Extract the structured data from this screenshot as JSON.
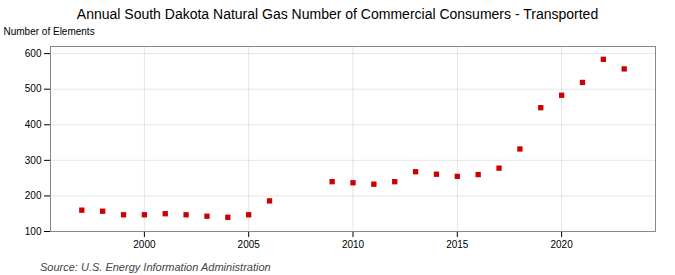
{
  "chart_data": {
    "type": "scatter",
    "title": "Annual South Dakota Natural Gas Number of Commercial Consumers - Transported",
    "y_label": "Number of Elements",
    "source": "Source: U.S. Energy Information Administration",
    "x": [
      1997,
      1998,
      1999,
      2000,
      2001,
      2002,
      2003,
      2004,
      2005,
      2006,
      2009,
      2010,
      2011,
      2012,
      2013,
      2014,
      2015,
      2016,
      2017,
      2018,
      2019,
      2020,
      2021,
      2022,
      2023
    ],
    "values": [
      160,
      157,
      147,
      147,
      150,
      147,
      143,
      140,
      147,
      186,
      240,
      237,
      233,
      240,
      268,
      261,
      255,
      260,
      278,
      332,
      448,
      483,
      519,
      584,
      557
    ],
    "color": "#cc0000",
    "marker": "square",
    "xlim": [
      1995.5,
      2024.5
    ],
    "xticks": [
      2000,
      2005,
      2010,
      2015,
      2020
    ],
    "ylim": [
      100,
      620
    ],
    "yticks": [
      100,
      200,
      300,
      400,
      500,
      600
    ],
    "grid": true
  }
}
